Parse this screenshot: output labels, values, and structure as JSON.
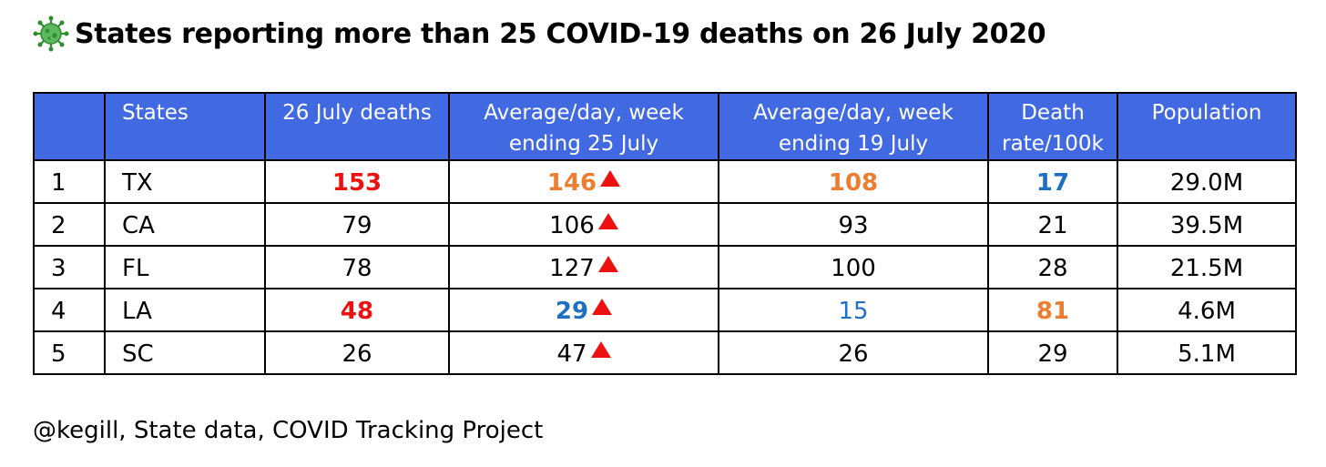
{
  "title": "States reporting more than 25 COVID-19 deaths on 26 July 2020",
  "title_icon": "virus-icon",
  "source": "@kegill, State data, COVID Tracking Project",
  "colors": {
    "header_bg": "#4169e1",
    "highlight_red": "#ee1111",
    "highlight_orange": "#ed7d31",
    "highlight_blue": "#1f6fc3",
    "up_arrow": "#ee1111"
  },
  "chart_data": {
    "type": "table",
    "columns": [
      "",
      "States",
      "26 July deaths",
      "Average/day, week ending 25 July",
      "Average/day, week ending 19 July",
      "Death rate/100k",
      "Population"
    ],
    "header_lines": [
      [
        ""
      ],
      [
        "States"
      ],
      [
        "26 July deaths"
      ],
      [
        "Average/day, week",
        "ending 25 July"
      ],
      [
        "Average/day, week",
        "ending 19 July"
      ],
      [
        "Death",
        "rate/100k"
      ],
      [
        "Population"
      ]
    ],
    "rows": [
      {
        "rank": "1",
        "state": "TX",
        "deaths_26_july": "153",
        "avg_week_25_july": "146",
        "avg_week_19_july": "108",
        "death_rate_100k": "17",
        "population": "29.0M",
        "style": {
          "deaths": "red",
          "avg25": "orange",
          "avg19": "orange",
          "rate": "blue-b"
        }
      },
      {
        "rank": "2",
        "state": "CA",
        "deaths_26_july": "79",
        "avg_week_25_july": "106",
        "avg_week_19_july": "93",
        "death_rate_100k": "21",
        "population": "39.5M",
        "style": {}
      },
      {
        "rank": "3",
        "state": "FL",
        "deaths_26_july": "78",
        "avg_week_25_july": "127",
        "avg_week_19_july": "100",
        "death_rate_100k": "28",
        "population": "21.5M",
        "style": {}
      },
      {
        "rank": "4",
        "state": "LA",
        "deaths_26_july": "48",
        "avg_week_25_july": "29",
        "avg_week_19_july": "15",
        "death_rate_100k": "81",
        "population": "4.6M",
        "style": {
          "deaths": "red",
          "avg25": "blue-b",
          "avg19": "blue",
          "rate": "orange"
        }
      },
      {
        "rank": "5",
        "state": "SC",
        "deaths_26_july": "26",
        "avg_week_25_july": "47",
        "avg_week_19_july": "26",
        "death_rate_100k": "29",
        "population": "5.1M",
        "style": {}
      }
    ],
    "avg_week_25_july_trend": [
      "up",
      "up",
      "up",
      "up",
      "up"
    ]
  }
}
